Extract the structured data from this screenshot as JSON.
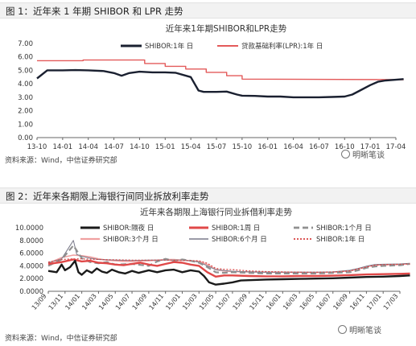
{
  "figure1": {
    "caption": "图 1：近年来 1 年期 SHIBOR 和 LPR 走势",
    "source": "资料来源：Wind，中信证券研究部",
    "watermark": "明晰笔谈"
  },
  "figure2": {
    "caption": "图 2：近年来各期限上海银行间同业拆放利率走势",
    "source": "资料来源：Wind，中信证券研究部",
    "watermark": "明晰笔谈"
  },
  "chart_data": [
    {
      "type": "line",
      "title": "近年来1年期SHIBOR和LPR走势",
      "ylim": [
        0,
        7
      ],
      "yticks": [
        "0.00",
        "1.00",
        "2.00",
        "3.00",
        "4.00",
        "5.00",
        "6.00",
        "7.00"
      ],
      "xticks": [
        "13-10",
        "14-01",
        "14-04",
        "14-07",
        "14-10",
        "15-01",
        "15-04",
        "15-07",
        "15-10",
        "16-01",
        "16-04",
        "16-07",
        "16-10",
        "17-01",
        "17-04"
      ],
      "legend_position": "top",
      "series": [
        {
          "name": "SHIBOR:1年  日",
          "color": "#1a2030",
          "points": [
            [
              0,
              4.4
            ],
            [
              0.4,
              5.0
            ],
            [
              1.0,
              5.0
            ],
            [
              1.5,
              5.02
            ],
            [
              2.0,
              5.0
            ],
            [
              2.6,
              4.95
            ],
            [
              3.0,
              4.8
            ],
            [
              3.3,
              4.6
            ],
            [
              3.6,
              4.8
            ],
            [
              4.0,
              4.9
            ],
            [
              4.5,
              4.85
            ],
            [
              5.0,
              4.85
            ],
            [
              5.4,
              4.82
            ],
            [
              6.0,
              4.5
            ],
            [
              6.3,
              3.5
            ],
            [
              6.5,
              3.4
            ],
            [
              7.0,
              3.4
            ],
            [
              7.4,
              3.42
            ],
            [
              7.8,
              3.2
            ],
            [
              8.0,
              3.12
            ],
            [
              8.5,
              3.1
            ],
            [
              9.0,
              3.05
            ],
            [
              9.5,
              3.05
            ],
            [
              10.0,
              3.0
            ],
            [
              10.5,
              3.0
            ],
            [
              11.0,
              3.0
            ],
            [
              11.5,
              3.02
            ],
            [
              12.0,
              3.05
            ],
            [
              12.3,
              3.2
            ],
            [
              12.6,
              3.5
            ],
            [
              13.0,
              3.9
            ],
            [
              13.3,
              4.15
            ],
            [
              13.6,
              4.25
            ],
            [
              14.0,
              4.3
            ],
            [
              14.3,
              4.35
            ]
          ]
        },
        {
          "name": "贷款基础利率(LPR):1年  日",
          "color": "#e35a5a",
          "points": [
            [
              0,
              5.72
            ],
            [
              1.8,
              5.72
            ],
            [
              1.8,
              5.77
            ],
            [
              4.2,
              5.77
            ],
            [
              4.2,
              5.51
            ],
            [
              5.0,
              5.51
            ],
            [
              5.0,
              5.3
            ],
            [
              5.8,
              5.3
            ],
            [
              5.8,
              5.1
            ],
            [
              6.6,
              5.1
            ],
            [
              6.6,
              4.85
            ],
            [
              7.4,
              4.85
            ],
            [
              7.4,
              4.6
            ],
            [
              8.0,
              4.6
            ],
            [
              8.0,
              4.35
            ],
            [
              14.3,
              4.31
            ]
          ]
        }
      ]
    },
    {
      "type": "line",
      "title": "近年来各期限上海银行同业拆借利率走势",
      "ylim": [
        0,
        10
      ],
      "yticks": [
        "0.0000",
        "2.0000",
        "4.0000",
        "6.0000",
        "8.0000",
        "10.0000"
      ],
      "xticks": [
        "13/09",
        "13/11",
        "14/01",
        "14/03",
        "14/05",
        "14/07",
        "14/09",
        "14/11",
        "15/01",
        "15/03",
        "15/05",
        "15/07",
        "15/09",
        "15/11",
        "16/01",
        "16/03",
        "16/05",
        "16/07",
        "16/09",
        "16/11",
        "17/01",
        "17/03"
      ],
      "legend_position": "top",
      "series": [
        {
          "name": "SHIBOR:隔夜  日",
          "color": "#1a1a1a",
          "style": "solid-thick",
          "points": [
            [
              0,
              3.2
            ],
            [
              0.5,
              3.0
            ],
            [
              0.8,
              4.2
            ],
            [
              1.0,
              3.3
            ],
            [
              1.3,
              3.8
            ],
            [
              1.6,
              4.8
            ],
            [
              1.8,
              3.0
            ],
            [
              2.0,
              2.6
            ],
            [
              2.3,
              3.3
            ],
            [
              2.6,
              2.9
            ],
            [
              2.9,
              3.6
            ],
            [
              3.2,
              3.1
            ],
            [
              3.5,
              2.9
            ],
            [
              3.8,
              3.4
            ],
            [
              4.2,
              3.0
            ],
            [
              4.6,
              2.8
            ],
            [
              5.0,
              3.2
            ],
            [
              5.4,
              2.9
            ],
            [
              6.0,
              3.3
            ],
            [
              6.5,
              3.0
            ],
            [
              7.0,
              3.3
            ],
            [
              7.5,
              3.4
            ],
            [
              8.0,
              3.0
            ],
            [
              8.5,
              3.3
            ],
            [
              9.0,
              3.1
            ],
            [
              9.3,
              2.4
            ],
            [
              9.6,
              1.4
            ],
            [
              10.0,
              1.05
            ],
            [
              10.5,
              1.2
            ],
            [
              11.0,
              1.4
            ],
            [
              11.5,
              1.7
            ],
            [
              12.0,
              1.75
            ],
            [
              13,
              1.85
            ],
            [
              14,
              1.9
            ],
            [
              15,
              1.95
            ],
            [
              16,
              2.0
            ],
            [
              17,
              2.05
            ],
            [
              18,
              2.15
            ],
            [
              19,
              2.25
            ],
            [
              20,
              2.3
            ],
            [
              21,
              2.4
            ],
            [
              21.6,
              2.5
            ]
          ]
        },
        {
          "name": "SHIBOR:1周  日",
          "color": "#e04848",
          "style": "solid-thick",
          "points": [
            [
              0,
              4.3
            ],
            [
              0.8,
              4.6
            ],
            [
              1.5,
              5.0
            ],
            [
              2.0,
              4.7
            ],
            [
              2.5,
              4.8
            ],
            [
              3,
              4.5
            ],
            [
              3.5,
              4.4
            ],
            [
              4,
              4.2
            ],
            [
              4.5,
              4.1
            ],
            [
              5,
              4.3
            ],
            [
              5.5,
              4.5
            ],
            [
              6,
              4.2
            ],
            [
              6.5,
              4.0
            ],
            [
              7,
              4.3
            ],
            [
              7.5,
              4.6
            ],
            [
              8,
              4.5
            ],
            [
              8.5,
              4.2
            ],
            [
              9,
              4.0
            ],
            [
              9.5,
              3.0
            ],
            [
              10,
              2.3
            ],
            [
              10.5,
              2.5
            ],
            [
              11,
              2.5
            ],
            [
              12,
              2.4
            ],
            [
              13,
              2.35
            ],
            [
              14,
              2.35
            ],
            [
              15,
              2.4
            ],
            [
              16,
              2.4
            ],
            [
              17,
              2.45
            ],
            [
              18,
              2.55
            ],
            [
              19,
              2.65
            ],
            [
              20,
              2.7
            ],
            [
              21,
              2.75
            ],
            [
              21.6,
              2.8
            ]
          ]
        },
        {
          "name": "SHIBOR:1个月  日",
          "color": "#909090",
          "style": "dashed",
          "points": [
            [
              0,
              4.0
            ],
            [
              0.8,
              5.0
            ],
            [
              1.5,
              7.2
            ],
            [
              2.0,
              5.2
            ],
            [
              2.5,
              4.6
            ],
            [
              3,
              4.4
            ],
            [
              3.5,
              4.6
            ],
            [
              4,
              4.2
            ],
            [
              5,
              4.3
            ],
            [
              6,
              4.0
            ],
            [
              6.5,
              4.7
            ],
            [
              7,
              5.1
            ],
            [
              7.5,
              4.8
            ],
            [
              8,
              5.0
            ],
            [
              8.5,
              4.8
            ],
            [
              9,
              4.5
            ],
            [
              9.5,
              3.8
            ],
            [
              10,
              3.0
            ],
            [
              10.5,
              2.9
            ],
            [
              11,
              3.0
            ],
            [
              12,
              2.9
            ],
            [
              13,
              2.8
            ],
            [
              14,
              2.8
            ],
            [
              15,
              2.8
            ],
            [
              16,
              2.8
            ],
            [
              17,
              2.9
            ],
            [
              18,
              3.0
            ],
            [
              18.5,
              3.3
            ],
            [
              19,
              3.7
            ],
            [
              19.5,
              3.9
            ],
            [
              20,
              4.0
            ],
            [
              21,
              4.1
            ],
            [
              21.6,
              4.3
            ]
          ]
        },
        {
          "name": "SHIBOR:3个月  日",
          "color": "#f0a0a0",
          "style": "solid",
          "points": [
            [
              0,
              4.4
            ],
            [
              0.8,
              5.3
            ],
            [
              1.5,
              5.7
            ],
            [
              2.0,
              5.6
            ],
            [
              2.5,
              5.4
            ],
            [
              3,
              5.1
            ],
            [
              3.5,
              4.9
            ],
            [
              4,
              4.8
            ],
            [
              4.5,
              4.7
            ],
            [
              5,
              4.7
            ],
            [
              6,
              4.8
            ],
            [
              6.5,
              4.9
            ],
            [
              7,
              5.0
            ],
            [
              7.5,
              5.0
            ],
            [
              8,
              4.9
            ],
            [
              8.5,
              4.8
            ],
            [
              9,
              4.7
            ],
            [
              9.5,
              4.2
            ],
            [
              10,
              3.4
            ],
            [
              10.5,
              3.2
            ],
            [
              11,
              3.1
            ],
            [
              12,
              3.05
            ],
            [
              13,
              3.0
            ],
            [
              14,
              3.0
            ],
            [
              15,
              3.0
            ],
            [
              16,
              2.95
            ],
            [
              17,
              3.0
            ],
            [
              18,
              3.2
            ],
            [
              18.5,
              3.5
            ],
            [
              19,
              3.9
            ],
            [
              19.5,
              4.1
            ],
            [
              20,
              4.15
            ],
            [
              21,
              4.2
            ],
            [
              21.6,
              4.35
            ]
          ]
        },
        {
          "name": "SHIBOR:6个月  日",
          "color": "#7a7a8a",
          "style": "solid-thin",
          "points": [
            [
              0,
              4.5
            ],
            [
              0.8,
              5.1
            ],
            [
              1.5,
              8.0
            ],
            [
              1.7,
              5.8
            ],
            [
              2.0,
              5.5
            ],
            [
              2.5,
              5.2
            ],
            [
              3,
              5.0
            ],
            [
              4,
              4.9
            ],
            [
              5,
              4.85
            ],
            [
              6,
              4.9
            ],
            [
              7,
              4.9
            ],
            [
              8,
              4.9
            ],
            [
              8.5,
              4.8
            ],
            [
              9,
              4.6
            ],
            [
              9.5,
              4.0
            ],
            [
              10,
              3.4
            ],
            [
              10.5,
              3.25
            ],
            [
              11,
              3.15
            ],
            [
              12,
              3.05
            ],
            [
              13,
              3.0
            ],
            [
              14,
              3.0
            ],
            [
              15,
              3.0
            ],
            [
              16,
              3.0
            ],
            [
              17,
              3.05
            ],
            [
              18,
              3.3
            ],
            [
              18.5,
              3.6
            ],
            [
              19,
              3.95
            ],
            [
              19.5,
              4.2
            ],
            [
              20,
              4.25
            ],
            [
              21,
              4.3
            ],
            [
              21.6,
              4.4
            ]
          ]
        },
        {
          "name": "SHIBOR:1年  日",
          "color": "#d84040",
          "style": "dotted",
          "points": [
            [
              0,
              4.6
            ],
            [
              0.8,
              5.0
            ],
            [
              1.5,
              5.1
            ],
            [
              2,
              5.1
            ],
            [
              3,
              5.0
            ],
            [
              4,
              4.95
            ],
            [
              5,
              4.9
            ],
            [
              6,
              4.9
            ],
            [
              7,
              4.9
            ],
            [
              8,
              4.85
            ],
            [
              9,
              4.8
            ],
            [
              9.5,
              4.4
            ],
            [
              10,
              3.6
            ],
            [
              10.5,
              3.45
            ],
            [
              11,
              3.4
            ],
            [
              12,
              3.2
            ],
            [
              13,
              3.1
            ],
            [
              14,
              3.05
            ],
            [
              15,
              3.0
            ],
            [
              16,
              3.0
            ],
            [
              17,
              3.05
            ],
            [
              18,
              3.2
            ],
            [
              18.5,
              3.5
            ],
            [
              19,
              3.8
            ],
            [
              19.5,
              4.1
            ],
            [
              20,
              4.2
            ],
            [
              21,
              4.25
            ],
            [
              21.6,
              4.3
            ]
          ]
        }
      ]
    }
  ]
}
